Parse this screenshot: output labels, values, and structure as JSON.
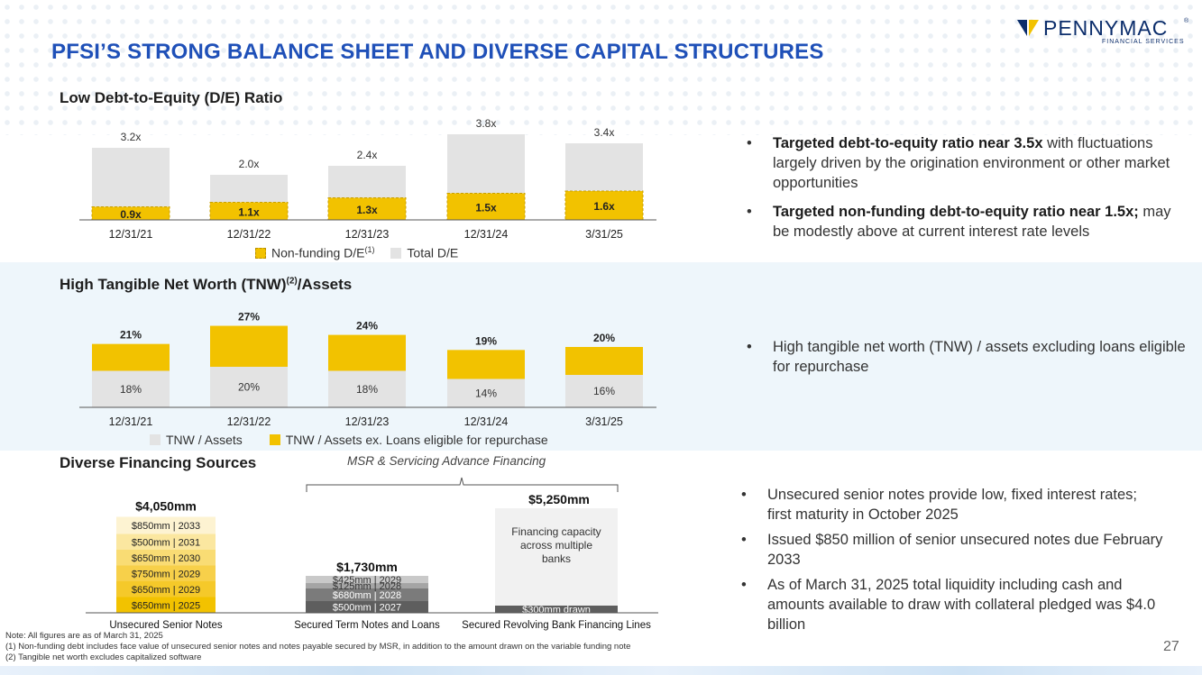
{
  "brand": {
    "name": "PENNYMAC",
    "tm": "®",
    "sub": "FINANCIAL SERVICES",
    "colors": {
      "navy": "#0b2d6b",
      "gold": "#f2c200",
      "blue": "#1f50b8",
      "gray": "#e3e3e3"
    }
  },
  "page": {
    "title": "PFSI’S STRONG BALANCE SHEET AND DIVERSE CAPITAL STRUCTURES",
    "number": "27"
  },
  "section1": {
    "title": "Low Debt-to-Equity (D/E) Ratio",
    "legend": {
      "nonfunding": "Non-funding D/E",
      "nonfunding_sup": "(1)",
      "total": "Total D/E"
    }
  },
  "section2": {
    "title": "High Tangible Net Worth (TNW)",
    "title_sup": "(2)",
    "title_suffix": "/Assets",
    "legend": {
      "tnw": "TNW / Assets",
      "tnw_ex": "TNW / Assets ex. Loans eligible for repurchase"
    }
  },
  "section3": {
    "title": "Diverse Financing Sources",
    "msr_label": "MSR & Servicing Advance Financing"
  },
  "chart_data": [
    {
      "type": "bar",
      "title": "Low Debt-to-Equity (D/E) Ratio",
      "categories": [
        "12/31/21",
        "12/31/22",
        "12/31/23",
        "12/31/24",
        "3/31/25"
      ],
      "series": [
        {
          "name": "Total D/E",
          "values": [
            3.2,
            2.0,
            2.4,
            3.8,
            3.4
          ],
          "labels": [
            "3.2x",
            "2.0x",
            "2.4x",
            "3.8x",
            "3.4x"
          ]
        },
        {
          "name": "Non-funding D/E",
          "values": [
            0.9,
            1.1,
            1.3,
            1.5,
            1.6
          ],
          "labels": [
            "0.9x",
            "1.1x",
            "1.3x",
            "1.5x",
            "1.6x"
          ]
        }
      ],
      "ylim": [
        0,
        4.0
      ]
    },
    {
      "type": "bar",
      "title": "High Tangible Net Worth (TNW)/Assets",
      "categories": [
        "12/31/21",
        "12/31/22",
        "12/31/23",
        "12/31/24",
        "3/31/25"
      ],
      "series": [
        {
          "name": "TNW / Assets",
          "values": [
            18,
            20,
            18,
            14,
            16
          ],
          "labels": [
            "18%",
            "20%",
            "18%",
            "14%",
            "16%"
          ]
        },
        {
          "name": "TNW / Assets ex. Loans eligible for repurchase",
          "values": [
            21,
            27,
            24,
            19,
            20
          ],
          "labels": [
            "21%",
            "27%",
            "24%",
            "19%",
            "20%"
          ]
        }
      ],
      "ylim": [
        0,
        28
      ]
    },
    {
      "type": "bar",
      "title": "Diverse Financing Sources",
      "categories": [
        "Unsecured Senior Notes",
        "Secured Term Notes and Loans",
        "Secured Revolving Bank Financing Lines"
      ],
      "totals": [
        "$4,050mm",
        "$1,730mm",
        "$5,250mm"
      ],
      "stacks": [
        [
          {
            "value": 650,
            "label": "$650mm | 2025"
          },
          {
            "value": 650,
            "label": "$650mm | 2029"
          },
          {
            "value": 750,
            "label": "$750mm | 2029"
          },
          {
            "value": 650,
            "label": "$650mm | 2030"
          },
          {
            "value": 500,
            "label": "$500mm | 2031"
          },
          {
            "value": 850,
            "label": "$850mm | 2033"
          }
        ],
        [
          {
            "value": 500,
            "label": "$500mm | 2027"
          },
          {
            "value": 680,
            "label": "$680mm | 2028"
          },
          {
            "value": 125,
            "label": "$125mm | 2028"
          },
          {
            "value": 425,
            "label": "$425mm | 2029"
          }
        ],
        [
          {
            "value": 300,
            "label": "$300mm drawn"
          },
          {
            "value": 4950,
            "label": "Financing capacity across multiple banks"
          }
        ]
      ]
    }
  ],
  "bullets1": [
    {
      "bold": "Targeted debt-to-equity ratio near 3.5x",
      "text": " with fluctuations largely driven by the origination environment or other market opportunities"
    },
    {
      "bold": "Targeted non-funding debt-to-equity ratio near 1.5x;",
      "text": " may be modestly above at current interest rate levels"
    }
  ],
  "bullets2": [
    {
      "text": "High tangible net worth (TNW) / assets excluding loans eligible for repurchase"
    }
  ],
  "bullets3": [
    {
      "text": "Unsecured senior notes provide low, fixed interest rates; first maturity in October 2025"
    },
    {
      "text": "Issued $850 million of senior unsecured notes due February 2033"
    },
    {
      "text": "As of March 31, 2025 total liquidity including cash and amounts available to draw with collateral pledged was $4.0 billion"
    }
  ],
  "notes": [
    "Note: All figures are as of March 31, 2025",
    "(1) Non-funding debt includes face value of unsecured senior notes and notes payable secured by MSR, in addition to the amount drawn on the variable funding note",
    "(2) Tangible net worth excludes capitalized software"
  ]
}
